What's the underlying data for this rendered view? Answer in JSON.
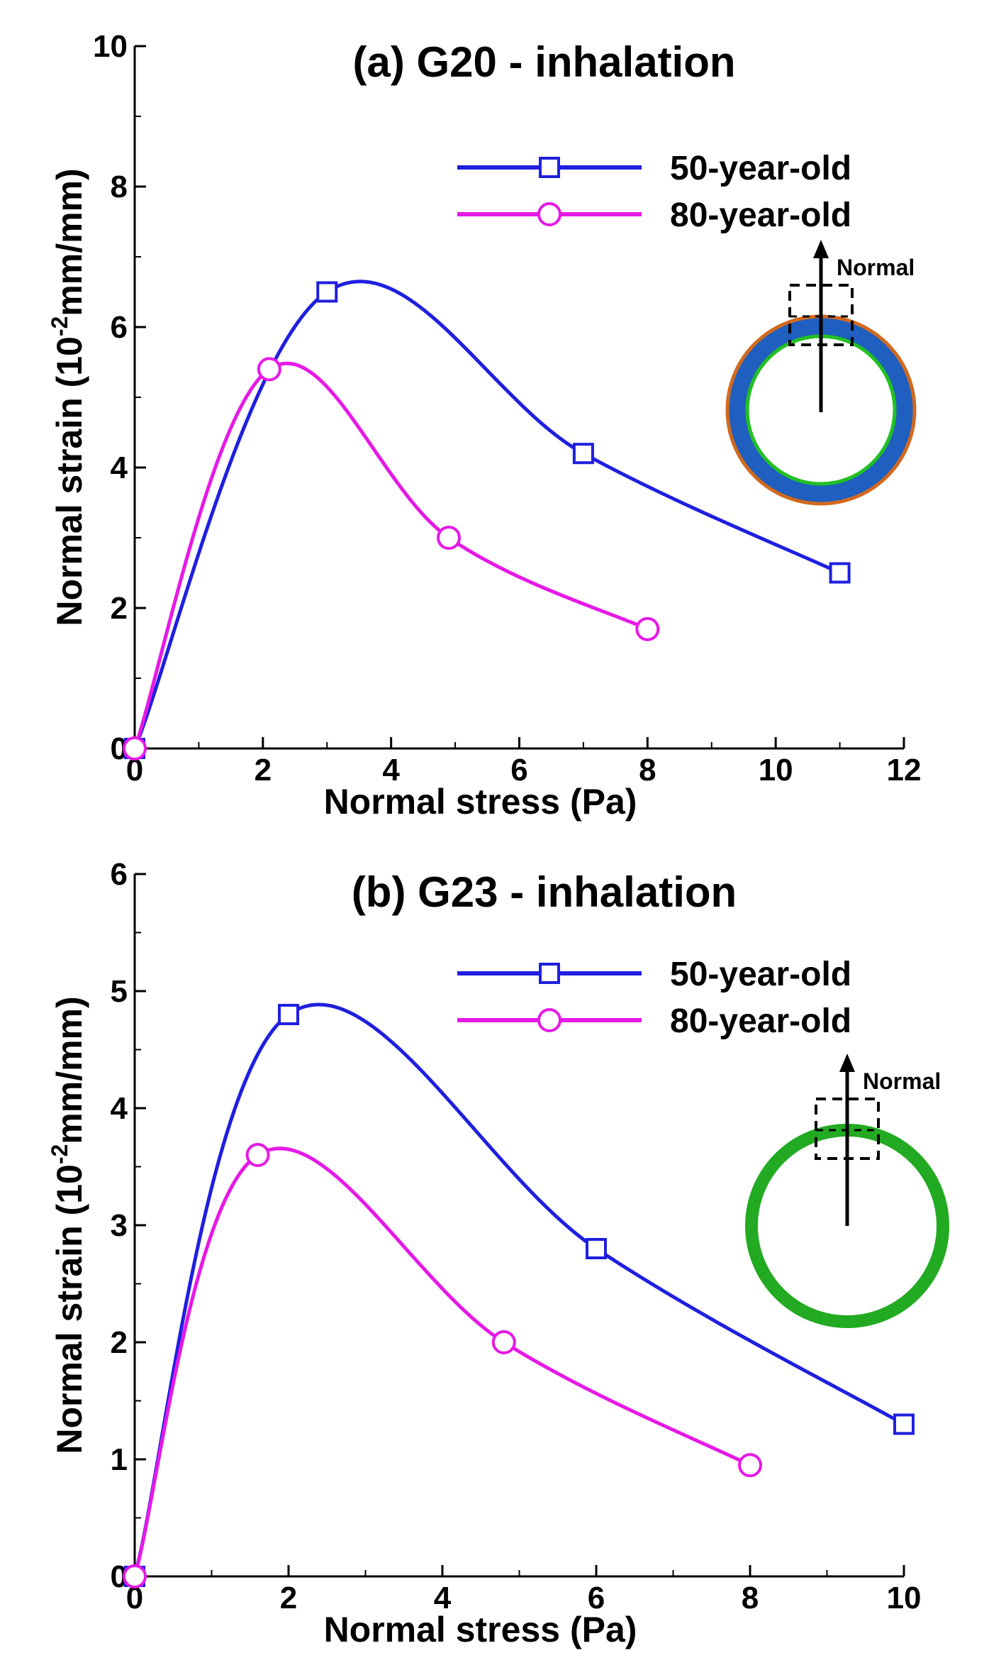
{
  "chart_data": [
    {
      "type": "line",
      "title": "(a) G20 - inhalation",
      "xlabel": "Normal stress (Pa)",
      "ylabel_prefix": "Normal strain (10",
      "ylabel_exponent": "-2",
      "ylabel_suffix": "mm/mm)",
      "xlim": [
        0,
        12
      ],
      "ylim": [
        0,
        10
      ],
      "xticks": [
        0,
        2,
        4,
        6,
        8,
        10,
        12
      ],
      "yticks": [
        0,
        2,
        4,
        6,
        8,
        10
      ],
      "legend_position": "top-right",
      "series": [
        {
          "name": "50-year-old",
          "color": "#1f1fdf",
          "marker": "square",
          "x": [
            0,
            3,
            7,
            11
          ],
          "y": [
            0,
            6.5,
            4.2,
            2.5
          ]
        },
        {
          "name": "80-year-old",
          "color": "#e619e6",
          "marker": "circle",
          "x": [
            0,
            2.1,
            4.9,
            8
          ],
          "y": [
            0,
            5.4,
            3.0,
            1.7
          ]
        }
      ],
      "inset": {
        "label": "Normal",
        "style": "double-ring",
        "outer_color": "#d2691e",
        "mid_color": "#1f5fbf",
        "inner_color": "#22c022"
      }
    },
    {
      "type": "line",
      "title": "(b) G23 - inhalation",
      "xlabel": "Normal stress (Pa)",
      "ylabel_prefix": "Normal strain (10",
      "ylabel_exponent": "-2",
      "ylabel_suffix": "mm/mm)",
      "xlim": [
        0,
        10
      ],
      "ylim": [
        0,
        6
      ],
      "xticks": [
        0,
        2,
        4,
        6,
        8,
        10
      ],
      "yticks": [
        0,
        1,
        2,
        3,
        4,
        5,
        6
      ],
      "legend_position": "top-right",
      "series": [
        {
          "name": "50-year-old",
          "color": "#1f1fdf",
          "marker": "square",
          "x": [
            0,
            2,
            6,
            10
          ],
          "y": [
            0,
            4.8,
            2.8,
            1.3
          ]
        },
        {
          "name": "80-year-old",
          "color": "#e619e6",
          "marker": "circle",
          "x": [
            0,
            1.6,
            4.8,
            8
          ],
          "y": [
            0,
            3.6,
            2.0,
            0.95
          ]
        }
      ],
      "inset": {
        "label": "Normal",
        "style": "single-ring",
        "ring_color": "#22aa22"
      }
    }
  ]
}
